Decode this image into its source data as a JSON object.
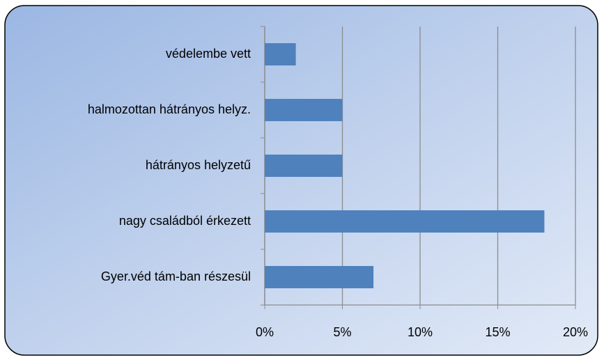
{
  "chart_data": {
    "type": "hbar",
    "categories": [
      "védelembe vett",
      "halmozottan hátrányos helyz.",
      "hátrányos helyzetű",
      "nagy családból érkezett",
      "Gyer.véd tám-ban részesül"
    ],
    "values": [
      2,
      5,
      5,
      18,
      7
    ],
    "color": "#4f81bd",
    "xlim": [
      0,
      20
    ],
    "xticks": [
      {
        "value": 0,
        "label": "0%"
      },
      {
        "value": 5,
        "label": "5%"
      },
      {
        "value": 10,
        "label": "10%"
      },
      {
        "value": 15,
        "label": "15%"
      },
      {
        "value": 20,
        "label": "20%"
      }
    ],
    "grid": true
  }
}
